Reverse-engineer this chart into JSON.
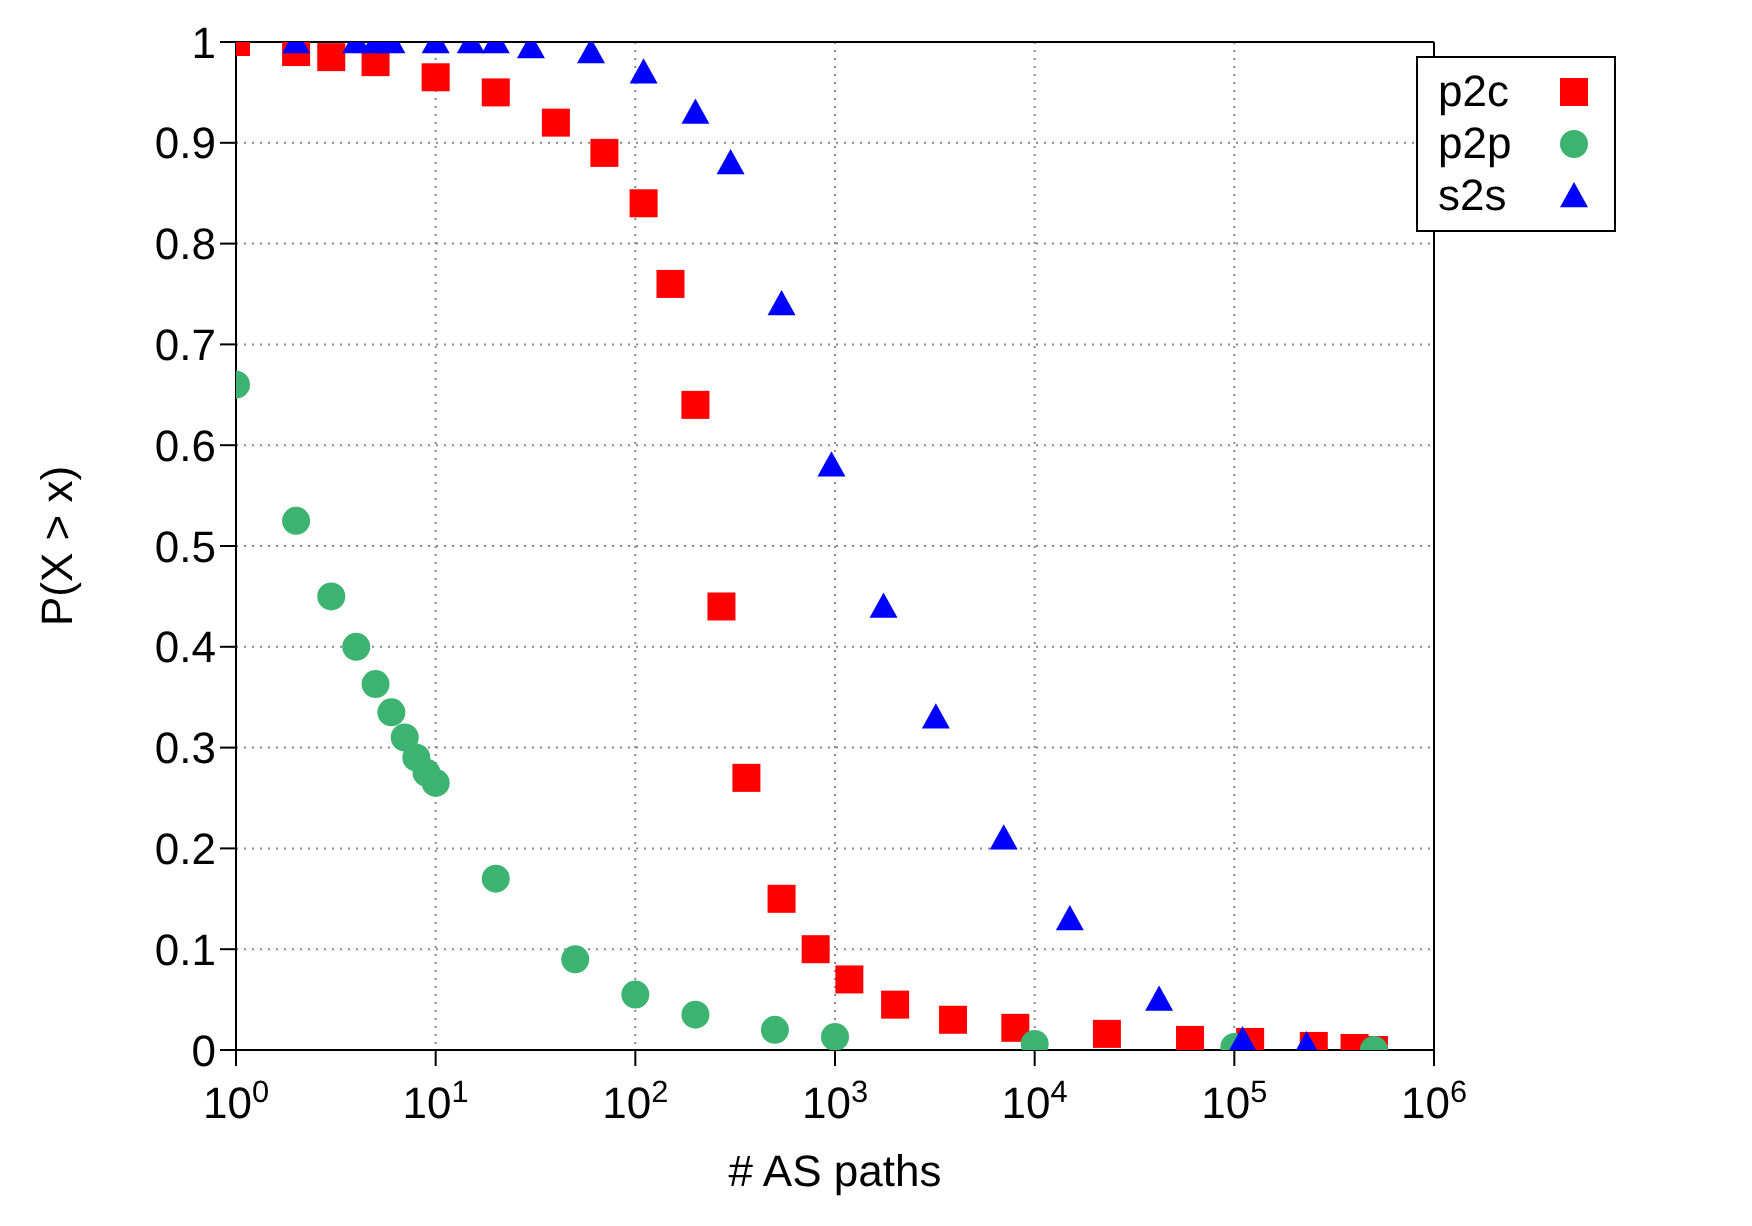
{
  "chart_data": {
    "type": "scatter",
    "xlabel": "# AS paths",
    "ylabel": "P(X > x)",
    "log": "x",
    "grid": true,
    "legend": "top right",
    "xlim": [
      1,
      1000000
    ],
    "xticks": [
      {
        "value": 1,
        "label": "10$^{0}$"
      },
      {
        "value": 10,
        "label": "10$^{1}$"
      },
      {
        "value": 100,
        "label": "10$^{2}$"
      },
      {
        "value": 1000,
        "label": "10$^{3}$"
      },
      {
        "value": 10000,
        "label": "10$^{4}$"
      },
      {
        "value": 100000,
        "label": "10$^{5}$"
      },
      {
        "value": 1000000,
        "label": "10$^{6}$"
      }
    ],
    "ylim": [
      0,
      1
    ],
    "yticks": [
      0,
      0.1,
      0.2,
      0.3,
      0.4,
      0.5,
      0.6,
      0.7,
      0.8,
      0.9,
      1
    ],
    "series": [
      {
        "name": "p2c",
        "color": "#ff0000",
        "marker": "square",
        "x": [
          1,
          2,
          3,
          5,
          10,
          20,
          40,
          70,
          110,
          150,
          200,
          270,
          360,
          540,
          800,
          1180,
          2000,
          3900,
          8000,
          23000,
          60000,
          120000,
          250000,
          400000,
          500000
        ],
        "values": [
          1,
          0.99,
          0.985,
          0.98,
          0.965,
          0.95,
          0.92,
          0.89,
          0.84,
          0.76,
          0.64,
          0.44,
          0.27,
          0.15,
          0.1,
          0.07,
          0.045,
          0.03,
          0.022,
          0.016,
          0.01,
          0.008,
          0.004,
          0.002,
          0
        ]
      },
      {
        "name": "p2p",
        "color": "#3cb371",
        "marker": "circle",
        "x": [
          1,
          2,
          3,
          4,
          5,
          6,
          7,
          8,
          9,
          10,
          20,
          50,
          100,
          200,
          500,
          1000,
          10000,
          100000,
          500000
        ],
        "values": [
          0.66,
          0.525,
          0.45,
          0.4,
          0.363,
          0.335,
          0.31,
          0.29,
          0.275,
          0.265,
          0.17,
          0.09,
          0.055,
          0.035,
          0.02,
          0.013,
          0.006,
          0.003,
          0
        ]
      },
      {
        "name": "s2s",
        "color": "#0000ff",
        "marker": "triangle",
        "x": [
          2,
          4,
          5,
          6,
          10,
          15,
          20,
          30,
          60,
          110,
          200,
          300,
          540,
          960,
          1750,
          3200,
          7000,
          15000,
          42000,
          110000,
          230000
        ],
        "values": [
          1,
          1,
          1,
          1,
          1,
          1,
          1,
          0.995,
          0.99,
          0.97,
          0.93,
          0.88,
          0.74,
          0.58,
          0.44,
          0.33,
          0.21,
          0.13,
          0.05,
          0.01,
          0.005
        ]
      }
    ]
  }
}
